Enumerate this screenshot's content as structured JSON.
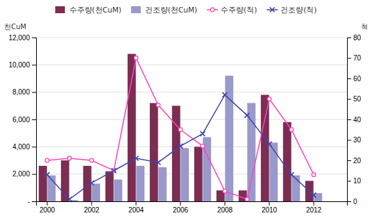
{
  "chart_data": {
    "type": "bar",
    "categories": [
      "2000",
      null,
      "2002",
      null,
      "2004",
      null,
      "2006",
      null,
      "2008",
      null,
      "2010",
      null,
      "2012",
      null
    ],
    "series": [
      {
        "name": "수주량(천CuM)",
        "type": "bar",
        "color": "#7B2D52",
        "values": [
          2600,
          3000,
          2600,
          2200,
          10800,
          7200,
          7000,
          4000,
          800,
          800,
          7800,
          5800,
          1500,
          0
        ]
      },
      {
        "name": "건조량(천CuM)",
        "type": "bar",
        "color": "#9999CC",
        "values": [
          1900,
          100,
          1300,
          1600,
          2600,
          2500,
          3900,
          4700,
          9200,
          7200,
          4300,
          1900,
          600,
          0
        ]
      },
      {
        "name": "수주량(척)",
        "type": "line",
        "axis": "y2",
        "color": "#FF44BB",
        "marker": "circle",
        "values": [
          20,
          21,
          20,
          15,
          70,
          47,
          35,
          27,
          5,
          1,
          50,
          35,
          13,
          null
        ]
      },
      {
        "name": "건조량(척)",
        "type": "line",
        "axis": "y2",
        "color": "#4444AA",
        "marker": "x",
        "values": [
          13,
          1,
          9,
          15,
          21,
          19,
          27,
          33,
          52,
          42,
          28,
          13,
          3,
          null
        ]
      }
    ],
    "ylabel": "천CuM",
    "y2label": "척",
    "ylim": [
      0,
      12000
    ],
    "yticks": [
      {
        "value": 0,
        "label": "-"
      },
      {
        "value": 2000,
        "label": "2,000"
      },
      {
        "value": 4000,
        "label": "4,000"
      },
      {
        "value": 6000,
        "label": "6,000"
      },
      {
        "value": 8000,
        "label": "8,000"
      },
      {
        "value": 10000,
        "label": "10,000"
      },
      {
        "value": 12000,
        "label": "12,000"
      }
    ],
    "y2lim": [
      0,
      80
    ],
    "y2ticks": [
      0,
      10,
      20,
      30,
      40,
      50,
      60,
      70,
      80
    ],
    "grid": true,
    "legend": "top"
  }
}
